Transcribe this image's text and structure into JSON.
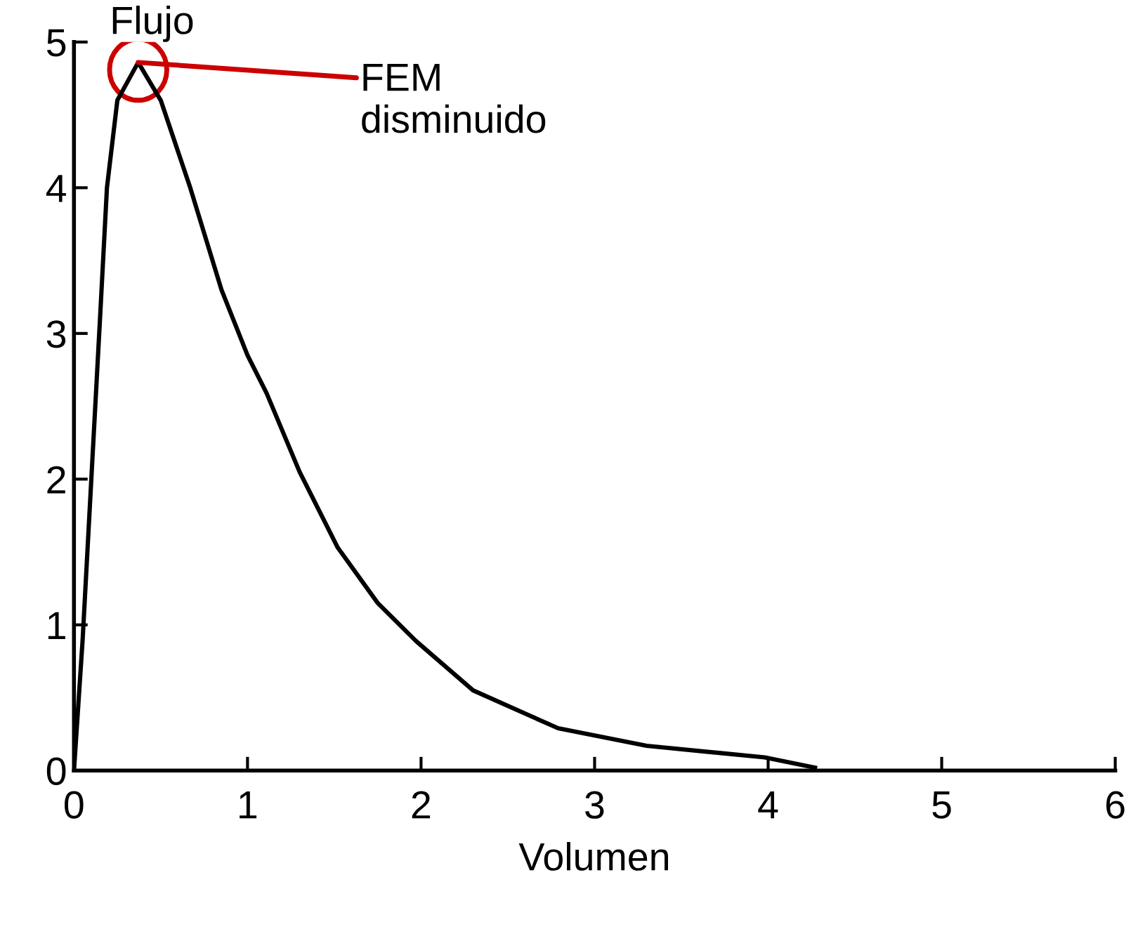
{
  "chart_data": {
    "type": "line",
    "xlabel": "Volumen",
    "ylabel": "Flujo",
    "annotations": [
      {
        "text": "FEM\ndisminuido",
        "x": 0.37,
        "y": 4.86
      }
    ],
    "x": [
      0,
      0.05,
      0.1,
      0.15,
      0.19,
      0.25,
      0.37,
      0.5,
      0.67,
      0.85,
      1.0,
      1.11,
      1.3,
      1.52,
      1.75,
      1.97,
      2.3,
      2.79,
      3.3,
      3.98,
      4.27
    ],
    "series": [
      {
        "color": "#000000",
        "values": [
          0,
          0.9,
          2,
          3.1,
          4,
          4.6,
          4.86,
          4.6,
          4.0,
          3.3,
          2.85,
          2.59,
          2.05,
          1.53,
          1.15,
          0.89,
          0.55,
          0.29,
          0.17,
          0.09,
          0.02
        ]
      }
    ],
    "xlim": [
      0,
      6
    ],
    "ylim": [
      0,
      5
    ],
    "xticks": [
      0,
      1,
      2,
      3,
      4,
      5,
      6
    ],
    "yticks": [
      0,
      1,
      2,
      3,
      4,
      5
    ],
    "grid": false,
    "legend": false,
    "marker": "none",
    "line_style": "solid"
  }
}
